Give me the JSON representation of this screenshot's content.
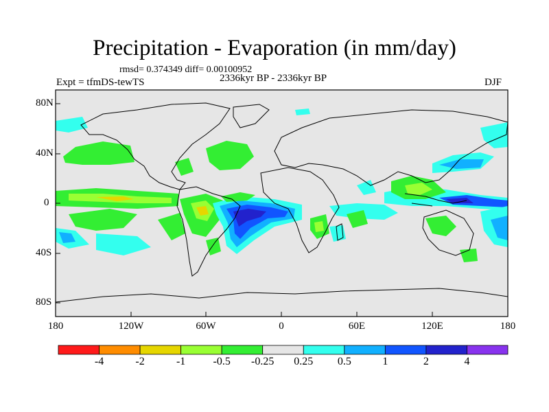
{
  "title": "Precipitation - Evaporation (in mm/day)",
  "stats": "rmsd= 0.374349 diff= 0.00100952",
  "period": "2336kyr BP - 2336kyr BP",
  "experiment": "Expt = tfmDS-tewTS",
  "season": "DJF",
  "axes": {
    "lat_ticks": [
      "80N",
      "40N",
      "0",
      "40S",
      "80S"
    ],
    "lon_ticks": [
      "180",
      "120W",
      "60W",
      "0",
      "60E",
      "120E",
      "180"
    ]
  },
  "colorbar": {
    "colors": [
      "#ff1a1a",
      "#ff8c00",
      "#e6d600",
      "#99ff33",
      "#33ee33",
      "#e6e6e6",
      "#33ffee",
      "#11b0ff",
      "#1155ff",
      "#2222cc",
      "#8833ee"
    ],
    "labels": [
      "-4",
      "-2",
      "-1",
      "-0.5",
      "-0.25",
      "0.25",
      "0.5",
      "1",
      "2",
      "4"
    ]
  },
  "palette": {
    "background": "#e6e6e6",
    "green": "#33ee33",
    "lightgreen": "#99ff33",
    "cyan": "#33ffee",
    "skyblue": "#11b0ff",
    "blue": "#1155ff",
    "darkblue": "#2222cc",
    "coast": "#000000"
  }
}
